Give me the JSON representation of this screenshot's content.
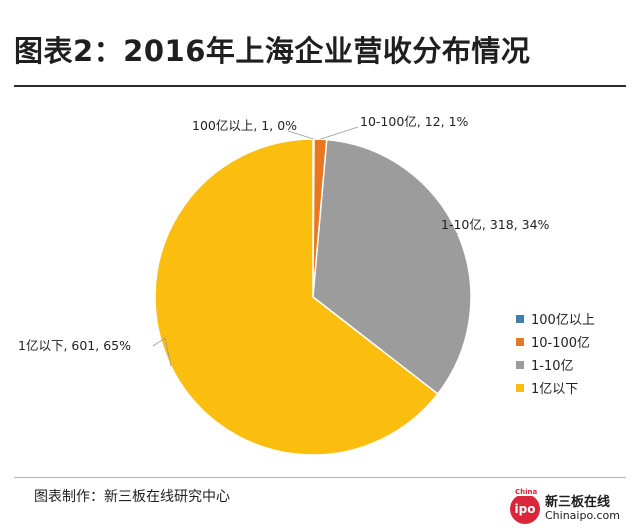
{
  "title": "图表2：2016年上海企业营收分布情况",
  "footer": {
    "source": "图表制作：新三板在线研究中心",
    "logo_cn": "新三板在线",
    "logo_en": "Chinaipo.com",
    "logo_mark": "ipo",
    "logo_top": "China"
  },
  "chart_data": {
    "type": "pie",
    "title": "2016年上海企业营收分布情况",
    "slices": [
      {
        "name": "100亿以上",
        "value": 1,
        "percent": 0,
        "color": "#3c7fb0",
        "label": "100亿以上, 1, 0%"
      },
      {
        "name": "10-100亿",
        "value": 12,
        "percent": 1,
        "color": "#e8771f",
        "label": "10-100亿, 12, 1%"
      },
      {
        "name": "1-10亿",
        "value": 318,
        "percent": 34,
        "color": "#9c9c9c",
        "label": "1-10亿, 318, 34%"
      },
      {
        "name": "1亿以下",
        "value": 601,
        "percent": 65,
        "color": "#fbbd0e",
        "label": "1亿以下, 601, 65%"
      }
    ],
    "legend_position": "right"
  }
}
